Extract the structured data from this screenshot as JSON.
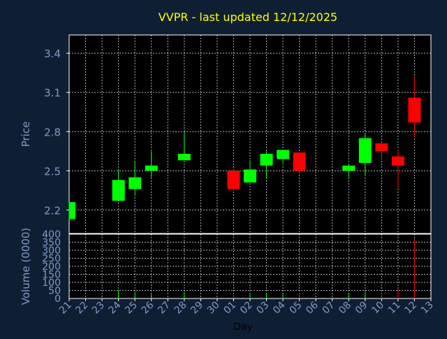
{
  "chart_data": {
    "type": "candlestick",
    "title": "VVPR - last updated 12/12/2025",
    "xlabel": "Day",
    "ylabel": "Price",
    "volume_label": "Volume (0000)",
    "grid": true,
    "colors": {
      "background": "#0f1f33",
      "plot": "#000000",
      "up": "#00ff00",
      "down": "#ff0000",
      "title": "#ffff00",
      "axis_text": "#7f9cc6",
      "grid": "#ffffff"
    },
    "x_ticks": [
      "21",
      "22",
      "23",
      "24",
      "25",
      "26",
      "27",
      "28",
      "29",
      "30",
      "01",
      "02",
      "03",
      "04",
      "05",
      "06",
      "07",
      "08",
      "09",
      "10",
      "11",
      "12",
      "13"
    ],
    "price_axis": {
      "ylim": [
        2.02,
        3.54
      ],
      "ticks": [
        2.2,
        2.5,
        2.8,
        3.1,
        3.4
      ],
      "tick_labels": [
        "2.2",
        "2.5",
        "2.8",
        "3.1",
        "3.4"
      ]
    },
    "volume_axis": {
      "ylim": [
        0,
        400
      ],
      "ticks": [
        0,
        50,
        100,
        150,
        200,
        250,
        300,
        350,
        400
      ],
      "tick_labels": [
        "0",
        "50",
        "100",
        "150",
        "200",
        "250",
        "300",
        "350",
        "400"
      ]
    },
    "candles": [
      {
        "day": "21",
        "open": 2.13,
        "high": 2.26,
        "low": 2.13,
        "close": 2.26,
        "volume": 0
      },
      {
        "day": "24",
        "open": 2.27,
        "high": 2.51,
        "low": 2.27,
        "close": 2.43,
        "volume": 50
      },
      {
        "day": "25",
        "open": 2.36,
        "high": 2.57,
        "low": 2.32,
        "close": 2.45,
        "volume": 40
      },
      {
        "day": "26",
        "open": 2.5,
        "high": 2.65,
        "low": 2.45,
        "close": 2.54,
        "volume": 30
      },
      {
        "day": "28",
        "open": 2.58,
        "high": 2.8,
        "low": 2.58,
        "close": 2.63,
        "volume": 40
      },
      {
        "day": "01",
        "open": 2.5,
        "high": 2.51,
        "low": 2.35,
        "close": 2.36,
        "volume": 20
      },
      {
        "day": "02",
        "open": 2.41,
        "high": 2.58,
        "low": 2.41,
        "close": 2.51,
        "volume": 30
      },
      {
        "day": "03",
        "open": 2.54,
        "high": 2.65,
        "low": 2.44,
        "close": 2.63,
        "volume": 30
      },
      {
        "day": "04",
        "open": 2.59,
        "high": 2.66,
        "low": 2.56,
        "close": 2.66,
        "volume": 25
      },
      {
        "day": "05",
        "open": 2.64,
        "high": 2.64,
        "low": 2.48,
        "close": 2.5,
        "volume": 35
      },
      {
        "day": "08",
        "open": 2.5,
        "high": 2.55,
        "low": 2.45,
        "close": 2.54,
        "volume": 30
      },
      {
        "day": "09",
        "open": 2.56,
        "high": 2.78,
        "low": 2.47,
        "close": 2.75,
        "volume": 40
      },
      {
        "day": "10",
        "open": 2.71,
        "high": 2.71,
        "low": 2.6,
        "close": 2.65,
        "volume": 30
      },
      {
        "day": "11",
        "open": 2.61,
        "high": 2.66,
        "low": 2.36,
        "close": 2.54,
        "volume": 60
      },
      {
        "day": "12",
        "open": 3.06,
        "high": 3.22,
        "low": 2.76,
        "close": 2.87,
        "volume": 370
      }
    ]
  }
}
